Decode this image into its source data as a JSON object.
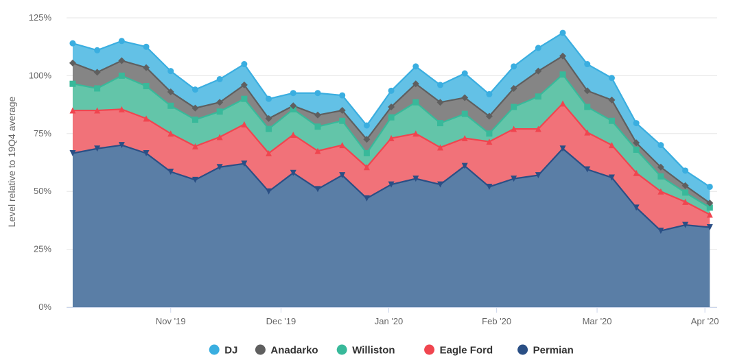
{
  "chart_data": {
    "type": "area",
    "stacked": true,
    "title": "",
    "ylabel": "Level relative to 19Q4 average",
    "xlabel": "",
    "ylim": [
      0,
      125
    ],
    "yticks": [
      0,
      25,
      50,
      75,
      100,
      125
    ],
    "ytick_labels": [
      "0%",
      "25%",
      "50%",
      "75%",
      "100%",
      "125%"
    ],
    "x_ticks": [
      {
        "label": "Nov '19",
        "x": 4.0
      },
      {
        "label": "Dec '19",
        "x": 8.5
      },
      {
        "label": "Jan '20",
        "x": 12.9
      },
      {
        "label": "Feb '20",
        "x": 17.3
      },
      {
        "label": "Mar '20",
        "x": 21.4
      },
      {
        "label": "Apr '20",
        "x": 25.8
      }
    ],
    "xlim": [
      -0.25,
      26.3
    ],
    "x": [
      0,
      1,
      2,
      3,
      4,
      5,
      6,
      7,
      8,
      9,
      10,
      11,
      12,
      13,
      14,
      15,
      16,
      17,
      18,
      19,
      20,
      21,
      22,
      23,
      24,
      25,
      26
    ],
    "grid": true,
    "legend_position": "bottom",
    "series": [
      {
        "name": "Permian",
        "color": "#2a4f85",
        "fill": "#5a7ea6",
        "marker": "triangle-down",
        "values": [
          66.5,
          68.5,
          70,
          66.5,
          58.5,
          55,
          60.5,
          62,
          50,
          58,
          51,
          57,
          47,
          53,
          55.5,
          53,
          61,
          52,
          55.5,
          57,
          68.5,
          59.5,
          56,
          43,
          33,
          35.5,
          34.5
        ]
      },
      {
        "name": "Eagle Ford",
        "color": "#f0454f",
        "fill": "#f17279",
        "marker": "triangle-up",
        "values": [
          85,
          85,
          85.5,
          81.5,
          75,
          69.5,
          73.5,
          79,
          66.5,
          74.5,
          67.5,
          70,
          60.5,
          73,
          75,
          69,
          73,
          71.5,
          77,
          77,
          88,
          75.5,
          70,
          58,
          50,
          45.5,
          40
        ]
      },
      {
        "name": "Williston",
        "color": "#38b99a",
        "fill": "#63c5a9",
        "marker": "square",
        "values": [
          96.5,
          94.5,
          100,
          95.5,
          87,
          81,
          84.5,
          90,
          77,
          85.5,
          78,
          80.5,
          66.5,
          82,
          88.5,
          79.5,
          83.5,
          75,
          86.5,
          91,
          100.5,
          86.5,
          80.5,
          68,
          56.5,
          49.5,
          43
        ]
      },
      {
        "name": "Anadarko",
        "color": "#5f5f5f",
        "fill": "#858585",
        "marker": "diamond",
        "values": [
          105.5,
          101.5,
          106.5,
          103.5,
          93,
          86,
          88.5,
          96,
          81.5,
          87,
          83,
          85,
          72.5,
          86.5,
          96.5,
          88.5,
          90.5,
          82.5,
          94.5,
          102,
          108.5,
          93.5,
          89.5,
          71,
          60.5,
          52.5,
          45
        ]
      },
      {
        "name": "DJ",
        "color": "#3aaee0",
        "fill": "#63c1e6",
        "marker": "circle",
        "values": [
          114,
          111,
          115,
          112.5,
          102,
          94,
          98.5,
          105,
          90,
          92.5,
          92.5,
          91.5,
          78.5,
          93.5,
          104,
          96,
          101,
          92,
          104,
          112,
          118.5,
          105,
          99,
          79.5,
          70,
          59,
          52
        ]
      }
    ],
    "legend_order": [
      "DJ",
      "Anadarko",
      "Williston",
      "Eagle Ford",
      "Permian"
    ]
  }
}
